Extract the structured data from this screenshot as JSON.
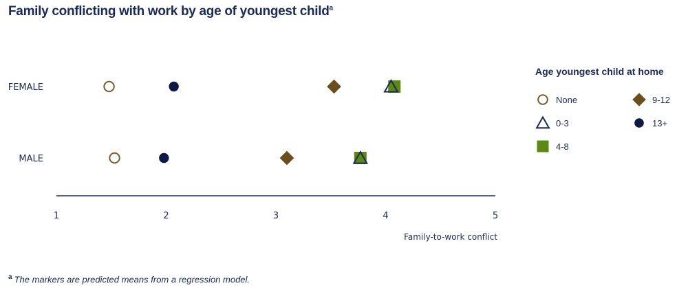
{
  "title": "Family conflicting with work by age of youngest child",
  "title_sup": "a",
  "footnote": {
    "marker": "a",
    "text": "The markers are predicted means from a regression model."
  },
  "legend": {
    "title": "Age youngest child at home",
    "placement": "right"
  },
  "colors": {
    "navy": "#1b2a5c",
    "brown": "#6b4e1e",
    "olive": "#5a8a12",
    "dark_navy": "#0d1a45",
    "none_outline": "#7a5a2a"
  },
  "chart_data": {
    "type": "scatter",
    "categories": [
      "FEMALE",
      "MALE"
    ],
    "xlabel": "Family-to-work conflict",
    "ylabel": "",
    "xlim": [
      1,
      5
    ],
    "xticks": [
      "1",
      "2",
      "3",
      "4",
      "5"
    ],
    "grid": false,
    "series": [
      {
        "name": "None",
        "marker": "open-circle",
        "color": "#7a5a2a",
        "values": [
          1.48,
          1.53
        ]
      },
      {
        "name": "0-3",
        "marker": "open-triangle",
        "color": "#1b2a5c",
        "values": [
          4.05,
          3.77
        ]
      },
      {
        "name": "4-8",
        "marker": "square",
        "color": "#5a8a12",
        "values": [
          4.08,
          3.77
        ]
      },
      {
        "name": "9-12",
        "marker": "diamond",
        "color": "#6b4e1e",
        "values": [
          3.53,
          3.1
        ]
      },
      {
        "name": "13+",
        "marker": "filled-circle",
        "color": "#0d1a45",
        "values": [
          2.07,
          1.98
        ]
      }
    ]
  }
}
